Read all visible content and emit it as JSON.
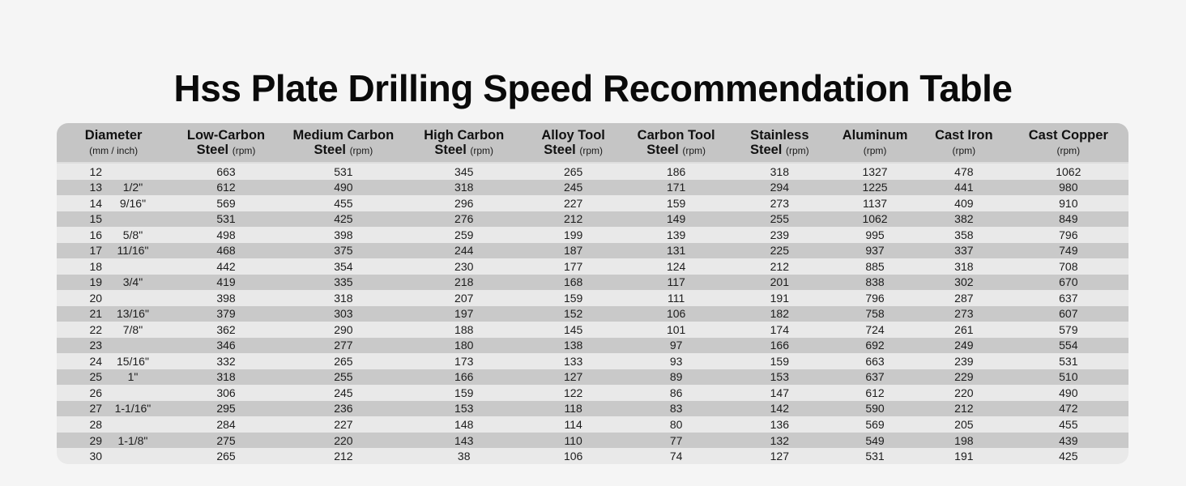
{
  "title": "Hss Plate Drilling Speed Recommendation Table",
  "colors": {
    "page_background": "#f5f5f5",
    "header_background": "#c5c5c5",
    "row_light": "#e9e9e9",
    "row_dark": "#c9c9c9",
    "text": "#1c1c1c"
  },
  "chart_data": {
    "type": "table",
    "title": "Hss Plate Drilling Speed Recommendation Table",
    "columns": [
      {
        "name": "diameter",
        "line1": "Diameter",
        "line2_bold": "",
        "line2_small": "(mm / inch)"
      },
      {
        "name": "low-carbon-steel",
        "line1": "Low-Carbon",
        "line2_bold": "Steel",
        "line2_small": "(rpm)"
      },
      {
        "name": "medium-carbon-steel",
        "line1": "Medium Carbon",
        "line2_bold": "Steel",
        "line2_small": "(rpm)"
      },
      {
        "name": "high-carbon-steel",
        "line1": "High Carbon",
        "line2_bold": "Steel",
        "line2_small": "(rpm)"
      },
      {
        "name": "alloy-tool-steel",
        "line1": "Alloy Tool",
        "line2_bold": "Steel",
        "line2_small": "(rpm)"
      },
      {
        "name": "carbon-tool-steel",
        "line1": "Carbon Tool",
        "line2_bold": "Steel",
        "line2_small": "(rpm)"
      },
      {
        "name": "stainless-steel",
        "line1": "Stainless",
        "line2_bold": "Steel",
        "line2_small": "(rpm)"
      },
      {
        "name": "aluminum",
        "line1": "Aluminum",
        "line2_bold": "",
        "line2_small": "(rpm)"
      },
      {
        "name": "cast-iron",
        "line1": "Cast Iron",
        "line2_bold": "",
        "line2_small": "(rpm)"
      },
      {
        "name": "cast-copper",
        "line1": "Cast Copper",
        "line2_bold": "",
        "line2_small": "(rpm)"
      }
    ],
    "rows": [
      {
        "mm": "12",
        "inch": "",
        "values": [
          "663",
          "531",
          "345",
          "265",
          "186",
          "318",
          "1327",
          "478",
          "1062"
        ]
      },
      {
        "mm": "13",
        "inch": "1/2\"",
        "values": [
          "612",
          "490",
          "318",
          "245",
          "171",
          "294",
          "1225",
          "441",
          "980"
        ]
      },
      {
        "mm": "14",
        "inch": "9/16\"",
        "values": [
          "569",
          "455",
          "296",
          "227",
          "159",
          "273",
          "1137",
          "409",
          "910"
        ]
      },
      {
        "mm": "15",
        "inch": "",
        "values": [
          "531",
          "425",
          "276",
          "212",
          "149",
          "255",
          "1062",
          "382",
          "849"
        ]
      },
      {
        "mm": "16",
        "inch": "5/8\"",
        "values": [
          "498",
          "398",
          "259",
          "199",
          "139",
          "239",
          "995",
          "358",
          "796"
        ]
      },
      {
        "mm": "17",
        "inch": "11/16\"",
        "values": [
          "468",
          "375",
          "244",
          "187",
          "131",
          "225",
          "937",
          "337",
          "749"
        ]
      },
      {
        "mm": "18",
        "inch": "",
        "values": [
          "442",
          "354",
          "230",
          "177",
          "124",
          "212",
          "885",
          "318",
          "708"
        ]
      },
      {
        "mm": "19",
        "inch": "3/4\"",
        "values": [
          "419",
          "335",
          "218",
          "168",
          "117",
          "201",
          "838",
          "302",
          "670"
        ]
      },
      {
        "mm": "20",
        "inch": "",
        "values": [
          "398",
          "318",
          "207",
          "159",
          "111",
          "191",
          "796",
          "287",
          "637"
        ]
      },
      {
        "mm": "21",
        "inch": "13/16\"",
        "values": [
          "379",
          "303",
          "197",
          "152",
          "106",
          "182",
          "758",
          "273",
          "607"
        ]
      },
      {
        "mm": "22",
        "inch": "7/8\"",
        "values": [
          "362",
          "290",
          "188",
          "145",
          "101",
          "174",
          "724",
          "261",
          "579"
        ]
      },
      {
        "mm": "23",
        "inch": "",
        "values": [
          "346",
          "277",
          "180",
          "138",
          "97",
          "166",
          "692",
          "249",
          "554"
        ]
      },
      {
        "mm": "24",
        "inch": "15/16\"",
        "values": [
          "332",
          "265",
          "173",
          "133",
          "93",
          "159",
          "663",
          "239",
          "531"
        ]
      },
      {
        "mm": "25",
        "inch": "1\"",
        "values": [
          "318",
          "255",
          "166",
          "127",
          "89",
          "153",
          "637",
          "229",
          "510"
        ]
      },
      {
        "mm": "26",
        "inch": "",
        "values": [
          "306",
          "245",
          "159",
          "122",
          "86",
          "147",
          "612",
          "220",
          "490"
        ]
      },
      {
        "mm": "27",
        "inch": "1-1/16\"",
        "values": [
          "295",
          "236",
          "153",
          "118",
          "83",
          "142",
          "590",
          "212",
          "472"
        ]
      },
      {
        "mm": "28",
        "inch": "",
        "values": [
          "284",
          "227",
          "148",
          "114",
          "80",
          "136",
          "569",
          "205",
          "455"
        ]
      },
      {
        "mm": "29",
        "inch": "1-1/8\"",
        "values": [
          "275",
          "220",
          "143",
          "110",
          "77",
          "132",
          "549",
          "198",
          "439"
        ]
      },
      {
        "mm": "30",
        "inch": "",
        "values": [
          "265",
          "212",
          "38",
          "106",
          "74",
          "127",
          "531",
          "191",
          "425"
        ]
      }
    ]
  }
}
